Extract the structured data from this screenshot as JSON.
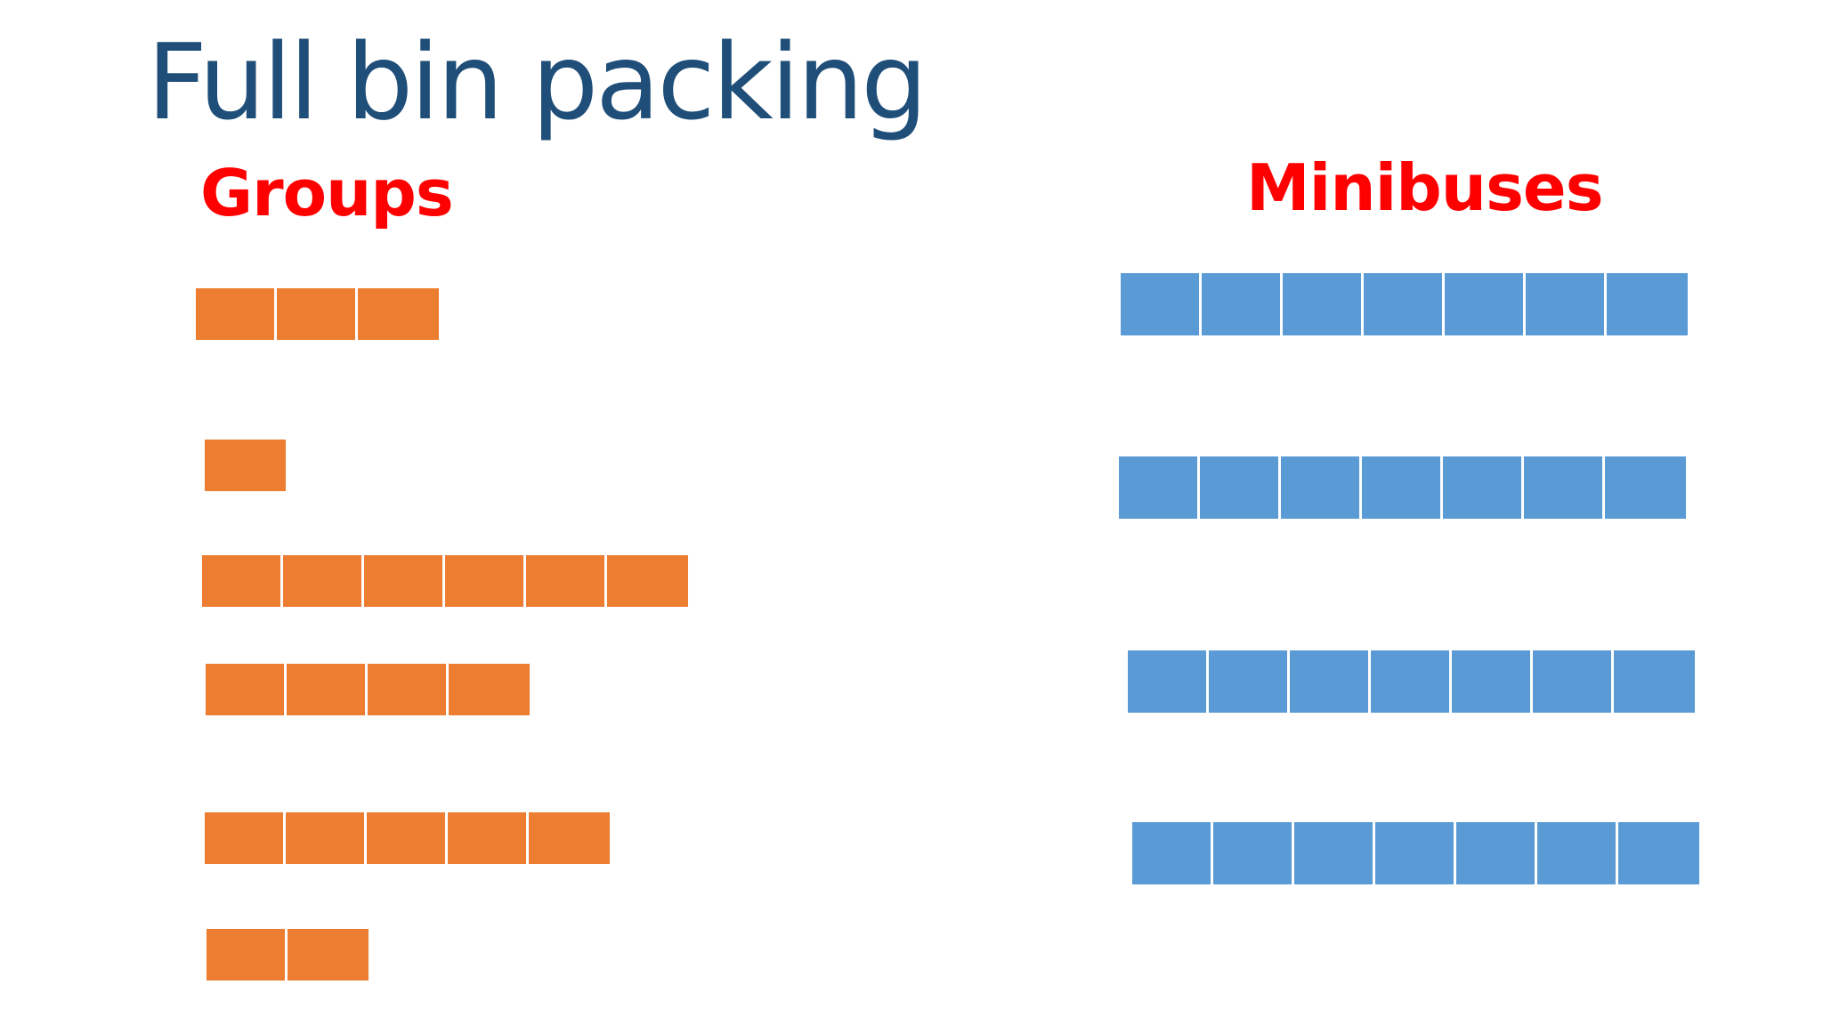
{
  "title": "Full bin packing",
  "groups": {
    "heading": "Groups",
    "color": "#ed7d31",
    "sizes": [
      3,
      1,
      6,
      4,
      5,
      2
    ]
  },
  "minibuses": {
    "heading": "Minibuses",
    "color": "#5b9bd5",
    "capacities": [
      7,
      7,
      7,
      7
    ]
  },
  "title_color": "#1f4e79",
  "heading_color": "#ff0000"
}
